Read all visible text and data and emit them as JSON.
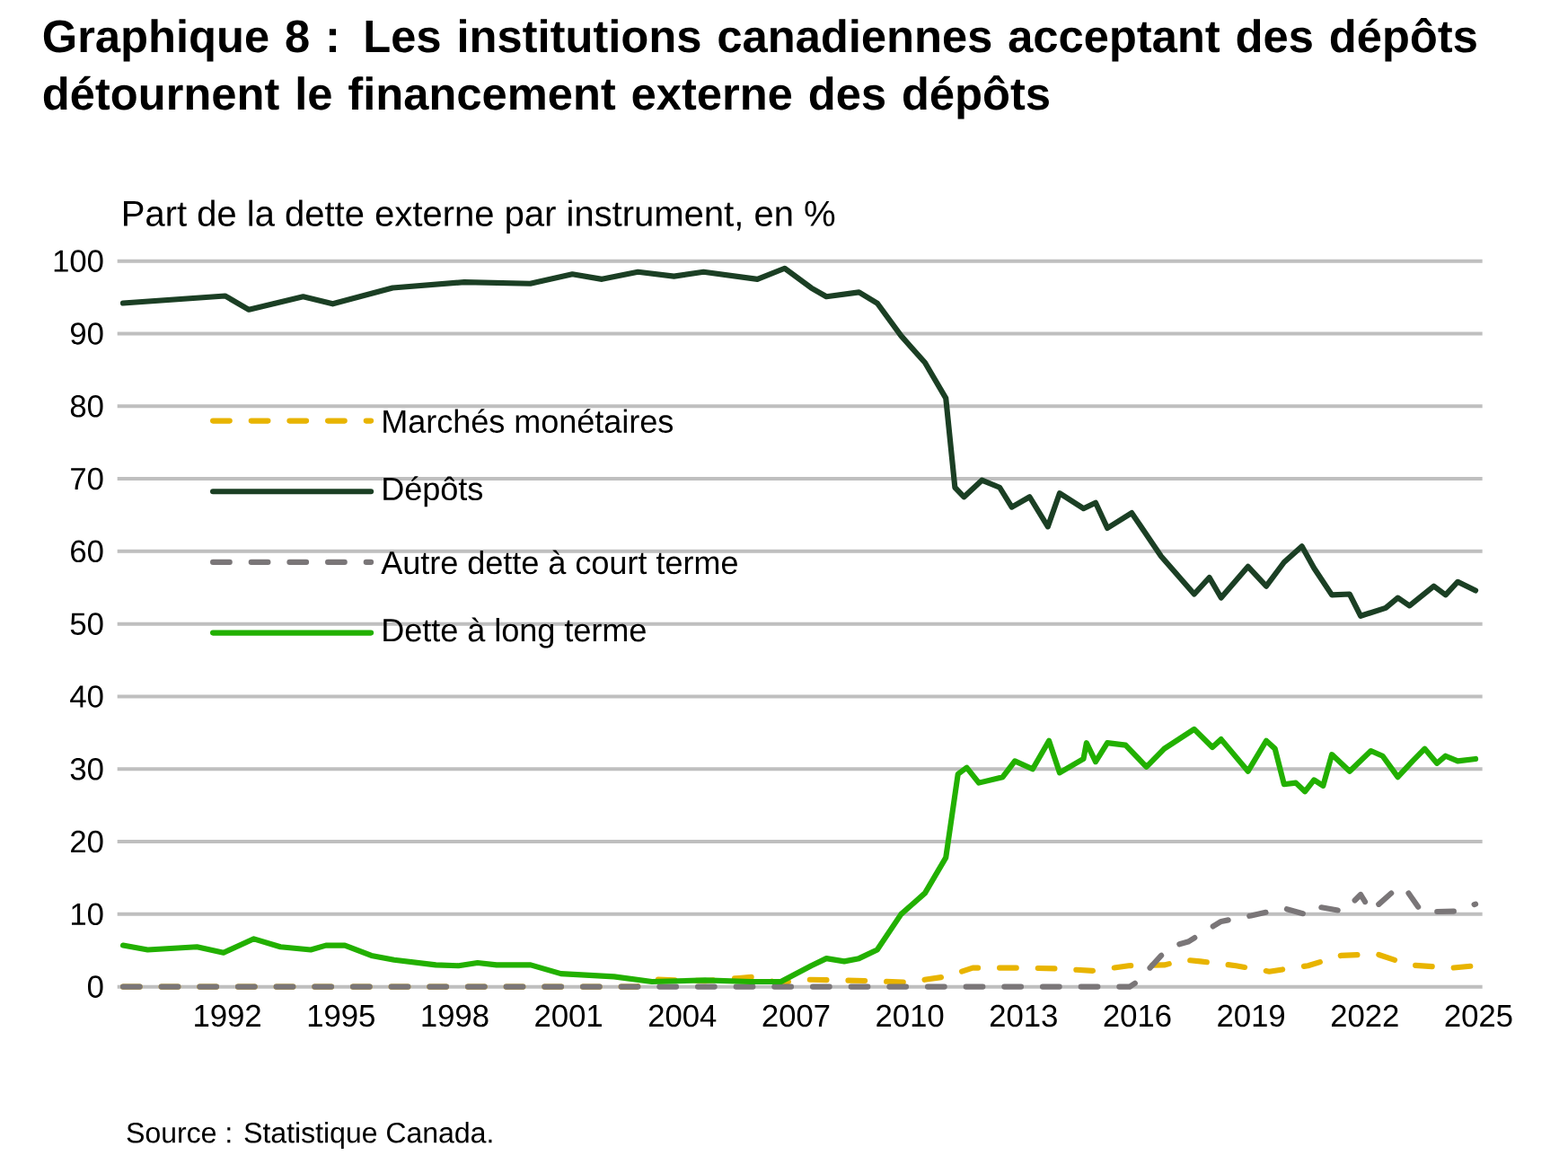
{
  "chart_data": {
    "type": "line",
    "title": "Graphique 8 : Les institutions canadiennes acceptant des dépôts détournent le financement externe des dépôts",
    "ylabel": "Part de la dette externe par instrument, en %",
    "annotations": [
      "Source : Statistique Canada."
    ],
    "xlim": [
      1989.1,
      2025.1
    ],
    "xticks": [
      1992,
      1995,
      1998,
      2001,
      2004,
      2007,
      2010,
      2013,
      2016,
      2019,
      2022,
      2025
    ],
    "ylim": [
      0,
      100
    ],
    "yticks": [
      0,
      10,
      20,
      30,
      40,
      50,
      60,
      70,
      80,
      90,
      100
    ],
    "grid": "y",
    "legend": "top left",
    "series": [
      {
        "name": "Marchés monétaires",
        "color": "#e8b400",
        "line_style": "dashed",
        "x": [
          1989.25,
          2002.8,
          2003.3,
          2004.6,
          2005.5,
          2006.0,
          2006.5,
          2007.2,
          2009.1,
          2009.9,
          2010.95,
          2011.66,
          2012.9,
          2013.87,
          2014.82,
          2015.77,
          2016.71,
          2017.27,
          2017.66,
          2018.6,
          2019.48,
          2020.5,
          2021.37,
          2022.32,
          2023.18,
          2024.29,
          2024.92
        ],
        "values": [
          0,
          0,
          1.0,
          0.8,
          1.2,
          1.4,
          0.5,
          1.0,
          0.8,
          0.6,
          1.4,
          2.6,
          2.6,
          2.5,
          2.2,
          2.9,
          3.0,
          3.7,
          3.5,
          2.9,
          2.1,
          2.9,
          4.3,
          4.5,
          3.0,
          2.6,
          2.9
        ]
      },
      {
        "name": "Dépôts",
        "color": "#1b3f24",
        "line_style": "solid",
        "x": [
          1989.25,
          1991.94,
          1992.57,
          1994.0,
          1994.78,
          1996.36,
          1998.25,
          1999.99,
          2001.1,
          2001.88,
          2002.83,
          2003.78,
          2004.56,
          2005.98,
          2006.7,
          2007.4,
          2007.8,
          2008.66,
          2009.14,
          2009.77,
          2010.4,
          2010.95,
          2011.19,
          2011.43,
          2011.9,
          2012.37,
          2012.69,
          2013.16,
          2013.64,
          2013.95,
          2014.58,
          2014.9,
          2015.21,
          2015.85,
          2016.63,
          2017.5,
          2017.9,
          2018.21,
          2018.92,
          2019.4,
          2019.87,
          2020.34,
          2020.66,
          2021.13,
          2021.6,
          2021.89,
          2022.55,
          2022.87,
          2023.18,
          2023.82,
          2024.13,
          2024.45,
          2024.92
        ],
        "values": [
          94.2,
          95.2,
          93.3,
          95.1,
          94.1,
          96.3,
          97.1,
          96.9,
          98.2,
          97.5,
          98.5,
          97.9,
          98.5,
          97.5,
          99.0,
          96.3,
          95.1,
          95.7,
          94.2,
          89.7,
          86.0,
          81.1,
          68.8,
          67.5,
          69.8,
          68.8,
          66.1,
          67.5,
          63.4,
          68.0,
          65.9,
          66.7,
          63.2,
          65.3,
          59.3,
          54.1,
          56.4,
          53.6,
          57.9,
          55.2,
          58.5,
          60.7,
          57.7,
          54.0,
          54.1,
          51.1,
          52.2,
          53.6,
          52.5,
          55.2,
          54.0,
          55.8,
          54.6
        ]
      },
      {
        "name": "Autre dette à court terme",
        "color": "#7a7678",
        "line_style": "dashed",
        "x": [
          1989.25,
          2015.8,
          2016.0,
          2016.63,
          2017.0,
          2017.34,
          2018.21,
          2018.6,
          2019.0,
          2019.87,
          2020.42,
          2020.66,
          2021.45,
          2021.89,
          2022.16,
          2022.87,
          2023.1,
          2023.5,
          2024.37,
          2024.92
        ],
        "values": [
          0,
          0,
          0.7,
          4.3,
          5.7,
          6.2,
          9.0,
          9.4,
          9.8,
          10.8,
          10.0,
          11.1,
          10.4,
          12.7,
          10.4,
          13.7,
          13.3,
          10.3,
          10.4,
          11.4
        ]
      },
      {
        "name": "Dette à long terme",
        "color": "#22b000",
        "line_style": "solid",
        "x": [
          1989.25,
          1989.9,
          1991.2,
          1991.9,
          1992.7,
          1993.4,
          1994.2,
          1994.6,
          1995.1,
          1995.8,
          1996.4,
          1997.5,
          1998.1,
          1998.6,
          1999.1,
          2000.0,
          2000.8,
          2002.2,
          2003.2,
          2004.6,
          2005.8,
          2006.6,
          2007.4,
          2007.8,
          2008.27,
          2008.66,
          2009.14,
          2009.77,
          2010.4,
          2010.95,
          2011.27,
          2011.5,
          2011.82,
          2012.45,
          2012.77,
          2013.24,
          2013.67,
          2013.95,
          2014.58,
          2014.66,
          2014.9,
          2015.21,
          2015.69,
          2016.24,
          2016.71,
          2017.5,
          2017.98,
          2018.21,
          2018.92,
          2019.4,
          2019.63,
          2019.87,
          2020.18,
          2020.42,
          2020.66,
          2020.9,
          2021.13,
          2021.6,
          2022.16,
          2022.47,
          2022.87,
          2023.26,
          2023.58,
          2023.9,
          2024.13,
          2024.45,
          2024.92
        ],
        "values": [
          5.7,
          5.1,
          5.5,
          4.7,
          6.6,
          5.5,
          5.1,
          5.7,
          5.7,
          4.3,
          3.7,
          3.0,
          2.9,
          3.3,
          3.0,
          3.0,
          1.8,
          1.4,
          0.7,
          0.9,
          0.7,
          0.7,
          2.9,
          3.9,
          3.5,
          3.9,
          5.1,
          10.0,
          12.9,
          17.8,
          29.3,
          30.2,
          28.1,
          28.9,
          31.1,
          30.0,
          33.9,
          29.5,
          31.4,
          33.6,
          31.0,
          33.6,
          33.3,
          30.3,
          32.8,
          35.5,
          33.0,
          34.1,
          29.7,
          33.9,
          32.8,
          27.9,
          28.1,
          26.9,
          28.5,
          27.7,
          32.0,
          29.7,
          32.5,
          31.8,
          28.9,
          31.1,
          32.8,
          30.8,
          31.8,
          31.1,
          31.4
        ]
      }
    ]
  }
}
